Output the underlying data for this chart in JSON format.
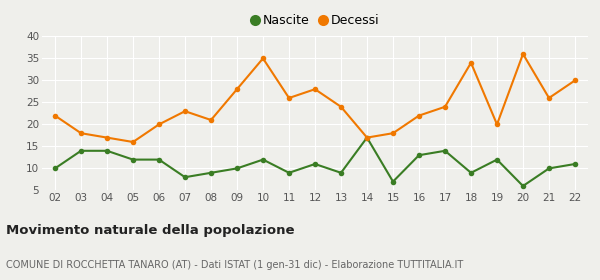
{
  "years": [
    "02",
    "03",
    "04",
    "05",
    "06",
    "07",
    "08",
    "09",
    "10",
    "11",
    "12",
    "13",
    "14",
    "15",
    "16",
    "17",
    "18",
    "19",
    "20",
    "21",
    "22"
  ],
  "nascite": [
    10,
    14,
    14,
    12,
    12,
    8,
    9,
    10,
    12,
    9,
    11,
    9,
    17,
    7,
    13,
    14,
    9,
    12,
    6,
    10,
    11
  ],
  "decessi": [
    22,
    18,
    17,
    16,
    20,
    23,
    21,
    28,
    35,
    26,
    28,
    24,
    17,
    18,
    22,
    24,
    34,
    20,
    36,
    26,
    30
  ],
  "nascite_color": "#3a7d24",
  "decessi_color": "#f07800",
  "bg_color": "#efefeb",
  "grid_color": "#ffffff",
  "ylim": [
    5,
    40
  ],
  "yticks": [
    5,
    10,
    15,
    20,
    25,
    30,
    35,
    40
  ],
  "title": "Movimento naturale della popolazione",
  "subtitle": "COMUNE DI ROCCHETTA TANARO (AT) - Dati ISTAT (1 gen-31 dic) - Elaborazione TUTTITALIA.IT",
  "legend_nascite": "Nascite",
  "legend_decessi": "Decessi",
  "marker_size": 4,
  "line_width": 1.5
}
